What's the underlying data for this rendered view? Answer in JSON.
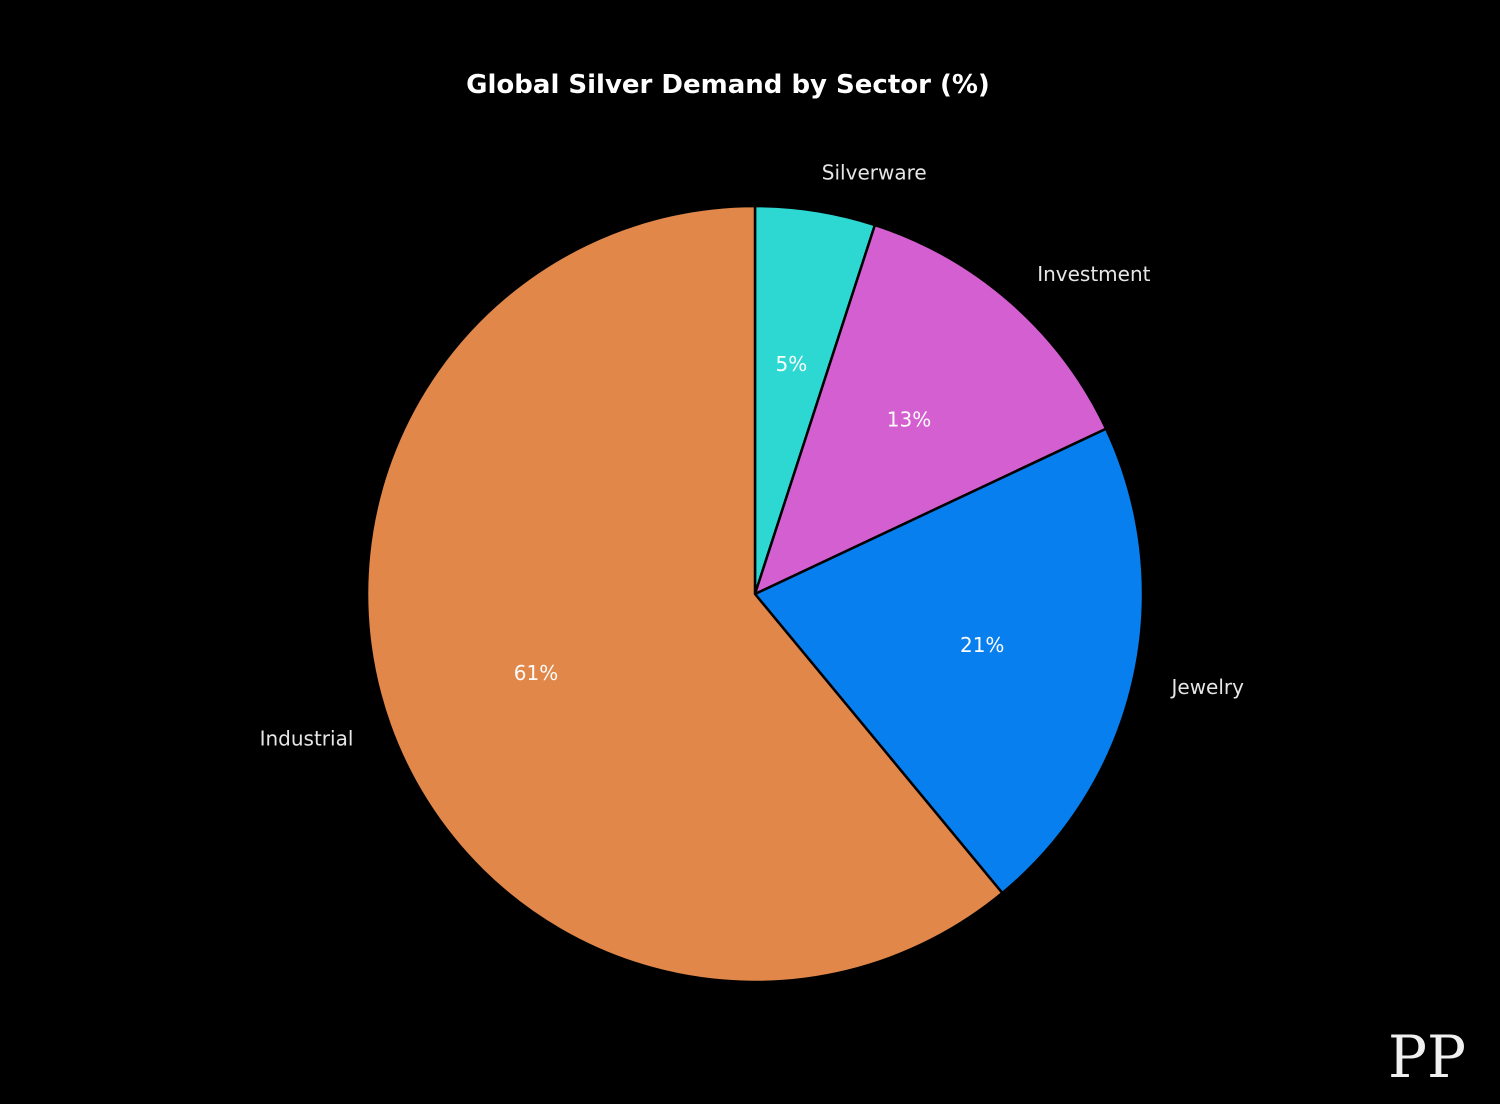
{
  "page": {
    "background": "#000000",
    "watermark": "PP"
  },
  "chart_data": {
    "type": "pie",
    "title": "Global Silver Demand by Sector (%)",
    "categories": [
      "Silverware",
      "Investment",
      "Jewelry",
      "Industrial"
    ],
    "values": [
      5,
      13,
      21,
      61
    ],
    "percent_labels": [
      "5%",
      "13%",
      "21%",
      "61%"
    ],
    "colors": [
      "#2dd8d2",
      "#d45fd0",
      "#087fee",
      "#e08749"
    ],
    "start_angle_deg": 90,
    "direction": "clockwise",
    "edge_color": "#000000",
    "title_color": "#ffffff",
    "label_color": "#e6e6e6",
    "pct_label_color": "#fcfcfc",
    "label_distance": 1.1,
    "pct_distance": 0.6,
    "legend_position": "none"
  }
}
